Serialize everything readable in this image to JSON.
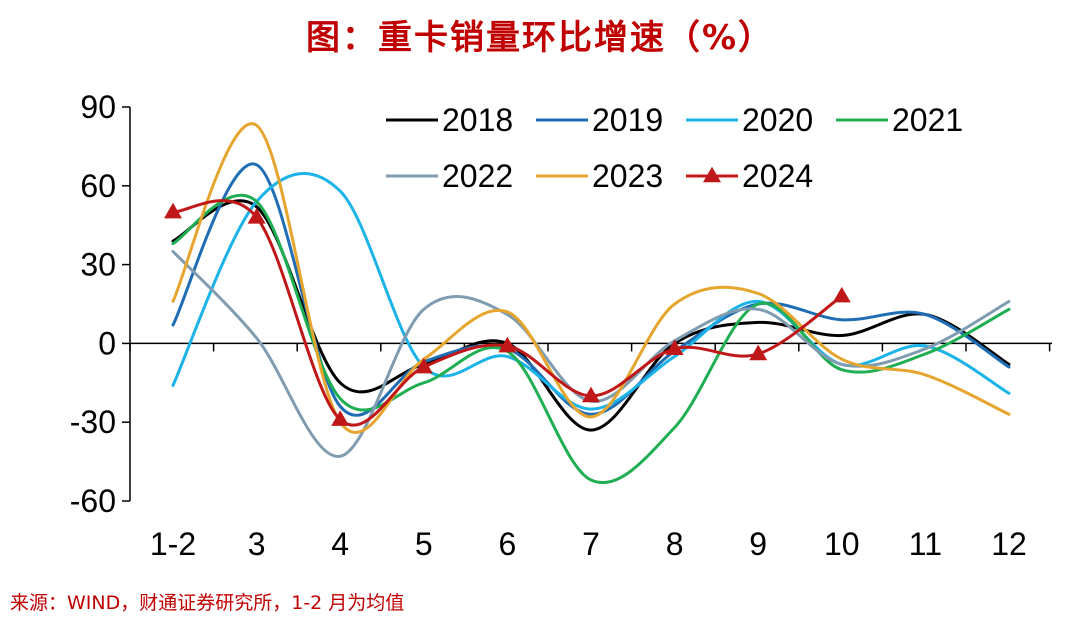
{
  "title": "图：重卡销量环比增速（%）",
  "source": "来源：WIND，财通证券研究所，1-2 月为均值",
  "chart_data": {
    "type": "line",
    "title": "图：重卡销量环比增速（%）",
    "categories": [
      "1-2",
      "3",
      "4",
      "5",
      "6",
      "7",
      "8",
      "9",
      "10",
      "11",
      "12"
    ],
    "ylim": [
      -60,
      90
    ],
    "yticks": [
      90,
      60,
      30,
      0,
      -30,
      -60
    ],
    "grid": false,
    "legend_position": "top-right",
    "series": [
      {
        "name": "2018",
        "color": "#000000",
        "values": [
          39,
          52,
          -15,
          -8,
          0,
          -33,
          0,
          8,
          3,
          11,
          -8
        ],
        "marker": "none"
      },
      {
        "name": "2019",
        "color": "#1f6db5",
        "values": [
          7,
          68,
          -24,
          -7,
          -2,
          -27,
          -3,
          15,
          9,
          11,
          -9
        ],
        "marker": "none"
      },
      {
        "name": "2020",
        "color": "#1cb4e8",
        "values": [
          -16,
          54,
          58,
          -9,
          -5,
          -25,
          -5,
          16,
          -8,
          -1,
          -19
        ],
        "marker": "none"
      },
      {
        "name": "2021",
        "color": "#1fae52",
        "values": [
          38,
          54,
          -21,
          -15,
          -3,
          -52,
          -32,
          15,
          -10,
          -4,
          13
        ],
        "marker": "none"
      },
      {
        "name": "2022",
        "color": "#7f9cb0",
        "values": [
          35,
          2,
          -43,
          13,
          11,
          -22,
          1,
          13,
          -8,
          -2,
          16
        ],
        "marker": "none"
      },
      {
        "name": "2023",
        "color": "#e5a52e",
        "values": [
          16,
          83,
          -30,
          -6,
          12,
          -28,
          15,
          19,
          -6,
          -12,
          -27
        ],
        "marker": "none"
      },
      {
        "name": "2024",
        "color": "#c01818",
        "values": [
          50,
          48,
          -29,
          -9,
          -1,
          -20,
          -2,
          -4,
          18,
          null,
          null
        ],
        "marker": "triangle"
      }
    ]
  }
}
